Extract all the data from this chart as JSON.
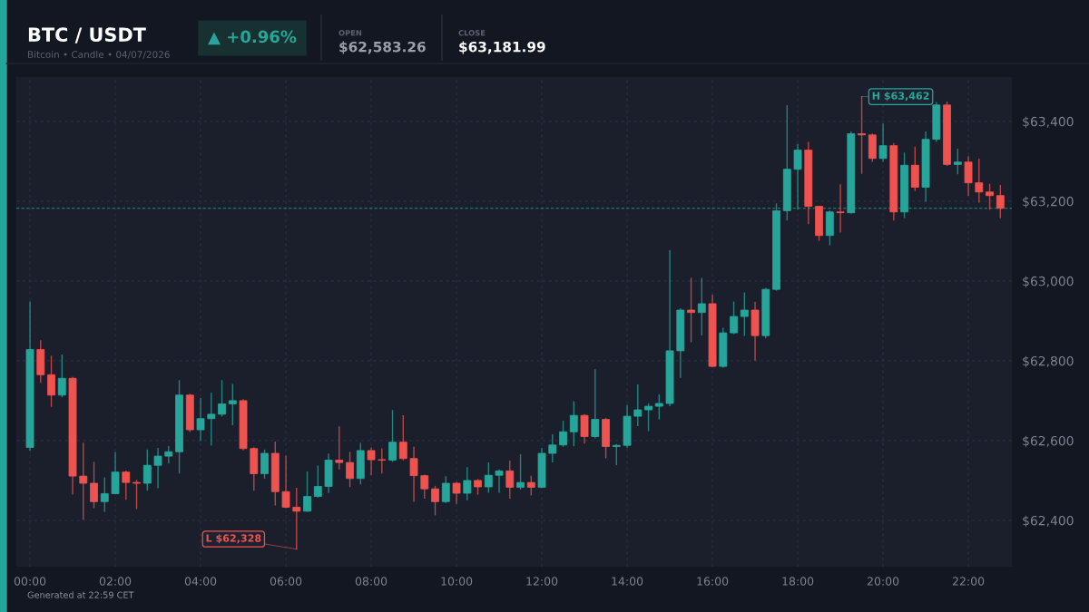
{
  "chart_data": {
    "type": "candlestick",
    "title": "BTC / USDT",
    "subtitle": "Bitcoin • Candle • 04/07/2026",
    "annotations": [
      "▲ +0.96%",
      "OPEN",
      "$62,583.26",
      "CLOSE",
      "$63,181.99",
      "Generated at 22:59 CET",
      {
        "text": "L $62,328",
        "x": 6.25,
        "y": 62328
      },
      {
        "text": "H $63,462",
        "x": 19.5,
        "y": 63462
      }
    ],
    "x": [
      0,
      0.25,
      0.5,
      0.75,
      1,
      1.25,
      1.5,
      1.75,
      2,
      2.25,
      2.5,
      2.75,
      3,
      3.25,
      3.5,
      3.75,
      4,
      4.25,
      4.5,
      4.75,
      5,
      5.25,
      5.5,
      5.75,
      6,
      6.25,
      6.5,
      6.75,
      7,
      7.25,
      7.5,
      7.75,
      8,
      8.25,
      8.5,
      8.75,
      9,
      9.25,
      9.5,
      9.75,
      10,
      10.25,
      10.5,
      10.75,
      11,
      11.25,
      11.5,
      11.75,
      12,
      12.25,
      12.5,
      12.75,
      13,
      13.25,
      13.5,
      13.75,
      14,
      14.25,
      14.5,
      14.75,
      15,
      15.25,
      15.5,
      15.75,
      16,
      16.25,
      16.5,
      16.75,
      17,
      17.25,
      17.5,
      17.75,
      18,
      18.25,
      18.5,
      18.75,
      19,
      19.25,
      19.5,
      19.75,
      20,
      20.25,
      20.5,
      20.75,
      21,
      21.25,
      21.5,
      21.75,
      22,
      22.25,
      22.5,
      22.75
    ],
    "ohlc": [
      [
        62583,
        62947,
        62576,
        62828
      ],
      [
        62828,
        62850,
        62746,
        62765
      ],
      [
        62765,
        62811,
        62686,
        62714
      ],
      [
        62714,
        62814,
        62710,
        62756
      ],
      [
        62756,
        62758,
        62466,
        62511
      ],
      [
        62511,
        62593,
        62403,
        62493
      ],
      [
        62493,
        62545,
        62432,
        62447
      ],
      [
        62447,
        62506,
        62423,
        62467
      ],
      [
        62467,
        62570,
        62467,
        62521
      ],
      [
        62521,
        62523,
        62453,
        62495
      ],
      [
        62495,
        62500,
        62430,
        62493
      ],
      [
        62493,
        62576,
        62476,
        62538
      ],
      [
        62538,
        62580,
        62482,
        62561
      ],
      [
        62561,
        62585,
        62544,
        62572
      ],
      [
        62572,
        62750,
        62519,
        62714
      ],
      [
        62714,
        62716,
        62623,
        62627
      ],
      [
        62627,
        62705,
        62601,
        62655
      ],
      [
        62655,
        62718,
        62589,
        62666
      ],
      [
        62666,
        62750,
        62662,
        62692
      ],
      [
        62692,
        62740,
        62640,
        62700
      ],
      [
        62700,
        62702,
        62577,
        62580
      ],
      [
        62580,
        62582,
        62476,
        62517
      ],
      [
        62517,
        62576,
        62506,
        62568
      ],
      [
        62568,
        62596,
        62439,
        62472
      ],
      [
        62472,
        62561,
        62432,
        62433
      ],
      [
        62433,
        62480,
        62328,
        62423
      ],
      [
        62423,
        62521,
        62423,
        62460
      ],
      [
        62460,
        62536,
        62458,
        62485
      ],
      [
        62485,
        62566,
        62470,
        62551
      ],
      [
        62551,
        62634,
        62529,
        62545
      ],
      [
        62545,
        62570,
        62485,
        62505
      ],
      [
        62505,
        62593,
        62492,
        62575
      ],
      [
        62575,
        62581,
        62515,
        62552
      ],
      [
        62552,
        62579,
        62519,
        62551
      ],
      [
        62551,
        62675,
        62548,
        62596
      ],
      [
        62596,
        62662,
        62552,
        62555
      ],
      [
        62555,
        62583,
        62448,
        62512
      ],
      [
        62512,
        62513,
        62456,
        62479
      ],
      [
        62479,
        62485,
        62414,
        62447
      ],
      [
        62447,
        62509,
        62445,
        62493
      ],
      [
        62493,
        62495,
        62443,
        62468
      ],
      [
        62468,
        62532,
        62452,
        62500
      ],
      [
        62500,
        62502,
        62466,
        62484
      ],
      [
        62484,
        62544,
        62471,
        62513
      ],
      [
        62513,
        62526,
        62471,
        62524
      ],
      [
        62524,
        62548,
        62456,
        62483
      ],
      [
        62483,
        62564,
        62479,
        62495
      ],
      [
        62495,
        62510,
        62464,
        62483
      ],
      [
        62483,
        62580,
        62482,
        62568
      ],
      [
        62568,
        62614,
        62547,
        62589
      ],
      [
        62589,
        62648,
        62586,
        62622
      ],
      [
        62622,
        62697,
        62587,
        62663
      ],
      [
        62663,
        62665,
        62594,
        62610
      ],
      [
        62610,
        62777,
        62607,
        62653
      ],
      [
        62653,
        62655,
        62557,
        62585
      ],
      [
        62585,
        62590,
        62540,
        62588
      ],
      [
        62588,
        62688,
        62583,
        62661
      ],
      [
        62661,
        62739,
        62638,
        62677
      ],
      [
        62677,
        62692,
        62625,
        62686
      ],
      [
        62686,
        62714,
        62655,
        62693
      ],
      [
        62693,
        63076,
        62688,
        62825
      ],
      [
        62825,
        62930,
        62759,
        62927
      ],
      [
        62927,
        63006,
        62848,
        62921
      ],
      [
        62921,
        63006,
        62865,
        62943
      ],
      [
        62943,
        62964,
        62785,
        62786
      ],
      [
        62786,
        62881,
        62784,
        62870
      ],
      [
        62870,
        62947,
        62868,
        62911
      ],
      [
        62911,
        62970,
        62864,
        62927
      ],
      [
        62927,
        62946,
        62802,
        62863
      ],
      [
        62863,
        62981,
        62858,
        62979
      ],
      [
        62979,
        63193,
        62977,
        63176
      ],
      [
        63176,
        63439,
        63153,
        63280
      ],
      [
        63280,
        63342,
        63180,
        63328
      ],
      [
        63328,
        63347,
        63144,
        63187
      ],
      [
        63187,
        63187,
        63102,
        63114
      ],
      [
        63114,
        63175,
        63091,
        63173
      ],
      [
        63173,
        63241,
        63123,
        63171
      ],
      [
        63171,
        63373,
        63170,
        63369
      ],
      [
        63369,
        63462,
        63270,
        63366
      ],
      [
        63366,
        63368,
        63300,
        63307
      ],
      [
        63307,
        63393,
        63300,
        63339
      ],
      [
        63339,
        63344,
        63153,
        63173
      ],
      [
        63173,
        63320,
        63159,
        63290
      ],
      [
        63290,
        63335,
        63227,
        63235
      ],
      [
        63235,
        63373,
        63200,
        63355
      ],
      [
        63355,
        63447,
        63350,
        63441
      ],
      [
        63441,
        63448,
        63290,
        63292
      ],
      [
        63292,
        63330,
        63269,
        63298
      ],
      [
        63298,
        63311,
        63215,
        63246
      ],
      [
        63246,
        63305,
        63198,
        63223
      ],
      [
        63223,
        63242,
        63180,
        63214
      ],
      [
        63214,
        63239,
        63159,
        63181.99
      ]
    ],
    "colors": [
      "#26a69a",
      "#ef5350",
      "#ef5350",
      "#26a69a",
      "#ef5350",
      "#ef5350",
      "#ef5350",
      "#26a69a",
      "#26a69a",
      "#ef5350",
      "#ef5350",
      "#26a69a",
      "#26a69a",
      "#26a69a",
      "#26a69a",
      "#ef5350",
      "#26a69a",
      "#26a69a",
      "#26a69a",
      "#26a69a",
      "#ef5350",
      "#ef5350",
      "#26a69a",
      "#ef5350",
      "#ef5350",
      "#ef5350",
      "#26a69a",
      "#26a69a",
      "#26a69a",
      "#ef5350",
      "#ef5350",
      "#26a69a",
      "#ef5350",
      "#ef5350",
      "#26a69a",
      "#ef5350",
      "#ef5350",
      "#ef5350",
      "#ef5350",
      "#26a69a",
      "#ef5350",
      "#26a69a",
      "#ef5350",
      "#26a69a",
      "#26a69a",
      "#ef5350",
      "#26a69a",
      "#ef5350",
      "#26a69a",
      "#26a69a",
      "#26a69a",
      "#26a69a",
      "#ef5350",
      "#26a69a",
      "#ef5350",
      "#26a69a",
      "#26a69a",
      "#26a69a",
      "#26a69a",
      "#26a69a",
      "#26a69a",
      "#26a69a",
      "#ef5350",
      "#26a69a",
      "#ef5350",
      "#26a69a",
      "#26a69a",
      "#26a69a",
      "#ef5350",
      "#26a69a",
      "#26a69a",
      "#26a69a",
      "#26a69a",
      "#ef5350",
      "#ef5350",
      "#26a69a",
      "#ef5350",
      "#26a69a",
      "#ef5350",
      "#ef5350",
      "#26a69a",
      "#ef5350",
      "#26a69a",
      "#ef5350",
      "#26a69a",
      "#26a69a",
      "#ef5350",
      "#26a69a",
      "#ef5350",
      "#ef5350",
      "#ef5350",
      "#ef5350"
    ],
    "xlim": [
      -0.32,
      23.02
    ],
    "xticks": [
      {
        "value": 0,
        "label": "00:00"
      },
      {
        "value": 2,
        "label": "02:00"
      },
      {
        "value": 4,
        "label": "04:00"
      },
      {
        "value": 6,
        "label": "06:00"
      },
      {
        "value": 8,
        "label": "08:00"
      },
      {
        "value": 10,
        "label": "10:00"
      },
      {
        "value": 12,
        "label": "12:00"
      },
      {
        "value": 14,
        "label": "14:00"
      },
      {
        "value": 16,
        "label": "16:00"
      },
      {
        "value": 18,
        "label": "18:00"
      },
      {
        "value": 20,
        "label": "20:00"
      },
      {
        "value": 22,
        "label": "22:00"
      }
    ],
    "ylim": [
      62284,
      63511
    ],
    "yticks": [
      {
        "value": 62400,
        "label": "$62,400"
      },
      {
        "value": 62600,
        "label": "$62,600"
      },
      {
        "value": 62800,
        "label": "$62,800"
      },
      {
        "value": 63000,
        "label": "$63,000"
      },
      {
        "value": 63200,
        "label": "$63,200"
      },
      {
        "value": 63400,
        "label": "$63,400"
      }
    ],
    "ref_lines": [
      {
        "axis": "y",
        "value": 63181.99,
        "color": "#26a69a",
        "line_style": "dashed"
      }
    ],
    "grid": true
  }
}
